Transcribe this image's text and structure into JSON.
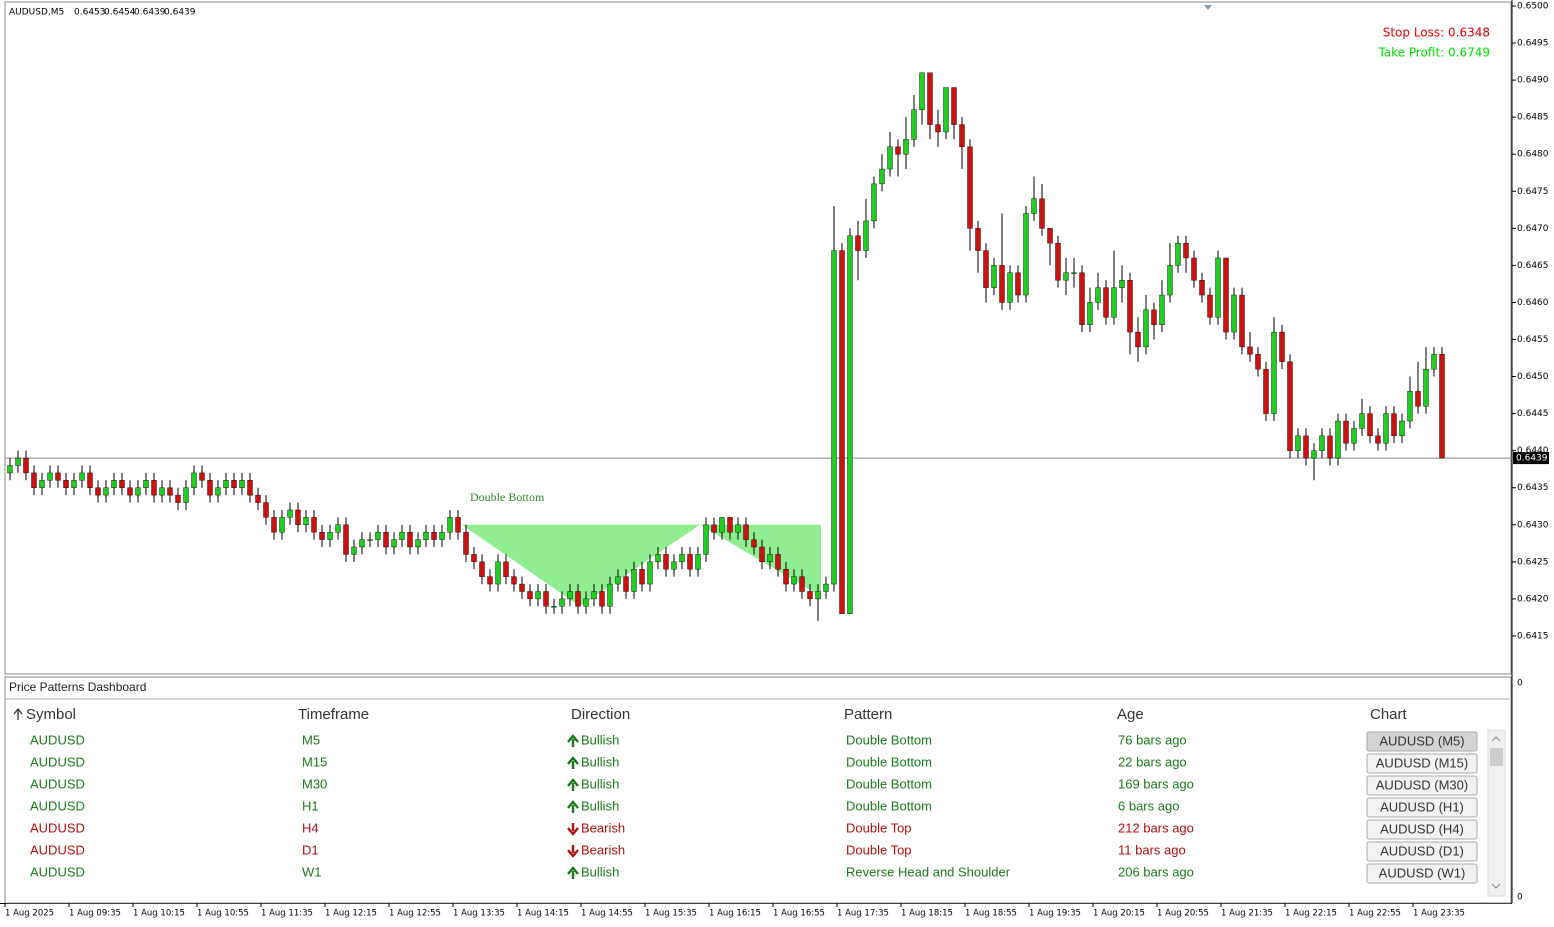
{
  "chart_data": {
    "type": "candlestick",
    "title": "AUDUSD,M5",
    "ohlc_display": [
      "0.6453",
      "0.6454",
      "0.6439",
      "0.6439"
    ],
    "up_color": "#22cc22",
    "down_color": "#cc1111",
    "wick_color": "#000000",
    "ylim": [
      0.641,
      0.65
    ],
    "yticks": [
      0.6415,
      {
        "value": 0.642,
        "label": "0.6420"
      },
      0.6425,
      {
        "value": 0.643,
        "label": "0.6430"
      },
      0.6435,
      {
        "value": 0.644,
        "label": "0.6440"
      },
      0.6445,
      {
        "value": 0.645,
        "label": "0.6450"
      },
      0.6455,
      {
        "value": 0.646,
        "label": "0.6460"
      },
      0.6465,
      {
        "value": 0.647,
        "label": "0.6470"
      },
      0.6475,
      {
        "value": 0.648,
        "label": "0.6480"
      },
      0.6485,
      {
        "value": 0.649,
        "label": "0.6490"
      },
      0.6495,
      {
        "value": 0.65,
        "label": "0.6500"
      }
    ],
    "sub_axis_labels": [
      0,
      0
    ],
    "current_price": 0.6439,
    "stop_loss_text": "Stop Loss: 0.6348",
    "take_profit_text": "Take Profit: 0.6749",
    "pattern": {
      "label": "Double Bottom",
      "neckline": 0.643,
      "low": 0.6419,
      "color": "#90ee90"
    },
    "time_labels": [
      "1 Aug 2025",
      "1 Aug 09:35",
      "1 Aug 10:15",
      "1 Aug 10:55",
      "1 Aug 11:35",
      "1 Aug 12:15",
      "1 Aug 12:55",
      "1 Aug 13:35",
      "1 Aug 14:15",
      "1 Aug 14:55",
      "1 Aug 15:35",
      "1 Aug 16:15",
      "1 Aug 16:55",
      "1 Aug 17:35",
      "1 Aug 18:15",
      "1 Aug 18:55",
      "1 Aug 19:35",
      "1 Aug 20:15",
      "1 Aug 20:55",
      "1 Aug 21:35",
      "1 Aug 22:15",
      "1 Aug 22:55",
      "1 Aug 23:35"
    ],
    "candles": [
      [
        0.6437,
        0.6439,
        0.6436,
        0.6438
      ],
      [
        0.6438,
        0.644,
        0.6437,
        0.6439
      ],
      [
        0.6439,
        0.644,
        0.6436,
        0.6437
      ],
      [
        0.6437,
        0.6438,
        0.6434,
        0.6435
      ],
      [
        0.6435,
        0.6437,
        0.6434,
        0.6436
      ],
      [
        0.6436,
        0.6438,
        0.6435,
        0.6437
      ],
      [
        0.6437,
        0.6438,
        0.6435,
        0.6436
      ],
      [
        0.6436,
        0.6437,
        0.6434,
        0.6435
      ],
      [
        0.6435,
        0.6437,
        0.6434,
        0.6436
      ],
      [
        0.6436,
        0.6438,
        0.6435,
        0.6437
      ],
      [
        0.6437,
        0.6438,
        0.6434,
        0.6435
      ],
      [
        0.6435,
        0.6436,
        0.6433,
        0.6434
      ],
      [
        0.6434,
        0.6436,
        0.6433,
        0.6435
      ],
      [
        0.6435,
        0.6437,
        0.6434,
        0.6436
      ],
      [
        0.6436,
        0.6437,
        0.6434,
        0.6435
      ],
      [
        0.6435,
        0.6436,
        0.6433,
        0.6434
      ],
      [
        0.6434,
        0.6436,
        0.6433,
        0.6435
      ],
      [
        0.6435,
        0.6437,
        0.6434,
        0.6436
      ],
      [
        0.6436,
        0.6437,
        0.6433,
        0.6434
      ],
      [
        0.6434,
        0.6436,
        0.6433,
        0.6435
      ],
      [
        0.6435,
        0.6436,
        0.6433,
        0.6434
      ],
      [
        0.6434,
        0.6435,
        0.6432,
        0.6433
      ],
      [
        0.6433,
        0.6436,
        0.6432,
        0.6435
      ],
      [
        0.6435,
        0.6438,
        0.6434,
        0.6437
      ],
      [
        0.6437,
        0.6438,
        0.6435,
        0.6436
      ],
      [
        0.6436,
        0.6437,
        0.6433,
        0.6434
      ],
      [
        0.6434,
        0.6436,
        0.6433,
        0.6435
      ],
      [
        0.6435,
        0.6437,
        0.6434,
        0.6436
      ],
      [
        0.6436,
        0.6437,
        0.6434,
        0.6435
      ],
      [
        0.6435,
        0.6437,
        0.6434,
        0.6436
      ],
      [
        0.6436,
        0.6437,
        0.6433,
        0.6434
      ],
      [
        0.6434,
        0.6435,
        0.6432,
        0.6433
      ],
      [
        0.6433,
        0.6434,
        0.643,
        0.6431
      ],
      [
        0.6431,
        0.6432,
        0.6428,
        0.6429
      ],
      [
        0.6429,
        0.6432,
        0.6428,
        0.6431
      ],
      [
        0.6431,
        0.6433,
        0.643,
        0.6432
      ],
      [
        0.6432,
        0.6433,
        0.6429,
        0.643
      ],
      [
        0.643,
        0.6432,
        0.6429,
        0.6431
      ],
      [
        0.6431,
        0.6432,
        0.6428,
        0.6429
      ],
      [
        0.6429,
        0.643,
        0.6427,
        0.6428
      ],
      [
        0.6428,
        0.643,
        0.6427,
        0.6429
      ],
      [
        0.6429,
        0.6431,
        0.6428,
        0.643
      ],
      [
        0.643,
        0.6431,
        0.6425,
        0.6426
      ],
      [
        0.6426,
        0.6428,
        0.6425,
        0.6427
      ],
      [
        0.6427,
        0.6429,
        0.6426,
        0.6428
      ],
      [
        0.6428,
        0.6429,
        0.6427,
        0.6428
      ],
      [
        0.6428,
        0.643,
        0.6427,
        0.6429
      ],
      [
        0.6429,
        0.643,
        0.6426,
        0.6427
      ],
      [
        0.6427,
        0.6429,
        0.6426,
        0.6428
      ],
      [
        0.6428,
        0.643,
        0.6427,
        0.6429
      ],
      [
        0.6429,
        0.643,
        0.6426,
        0.6427
      ],
      [
        0.6427,
        0.6429,
        0.6426,
        0.6428
      ],
      [
        0.6428,
        0.643,
        0.6427,
        0.6429
      ],
      [
        0.6429,
        0.643,
        0.6427,
        0.6428
      ],
      [
        0.6428,
        0.643,
        0.6427,
        0.6429
      ],
      [
        0.6429,
        0.6432,
        0.6428,
        0.6431
      ],
      [
        0.6431,
        0.6432,
        0.6428,
        0.6429
      ],
      [
        0.6429,
        0.643,
        0.6425,
        0.6426
      ],
      [
        0.6426,
        0.6427,
        0.6424,
        0.6425
      ],
      [
        0.6425,
        0.6426,
        0.6422,
        0.6423
      ],
      [
        0.6423,
        0.6424,
        0.6421,
        0.6422
      ],
      [
        0.6422,
        0.6426,
        0.6421,
        0.6425
      ],
      [
        0.6425,
        0.6426,
        0.6422,
        0.6423
      ],
      [
        0.6423,
        0.6424,
        0.6421,
        0.6422
      ],
      [
        0.6422,
        0.6423,
        0.642,
        0.6421
      ],
      [
        0.6421,
        0.6422,
        0.6419,
        0.642
      ],
      [
        0.642,
        0.6422,
        0.6419,
        0.6421
      ],
      [
        0.6421,
        0.6422,
        0.6418,
        0.6419
      ],
      [
        0.6419,
        0.642,
        0.6418,
        0.6419
      ],
      [
        0.6419,
        0.6421,
        0.6418,
        0.642
      ],
      [
        0.642,
        0.6422,
        0.6419,
        0.6421
      ],
      [
        0.6421,
        0.6422,
        0.6418,
        0.6419
      ],
      [
        0.6419,
        0.6421,
        0.6418,
        0.642
      ],
      [
        0.642,
        0.6422,
        0.6419,
        0.6421
      ],
      [
        0.6421,
        0.6422,
        0.6418,
        0.6419
      ],
      [
        0.6419,
        0.6423,
        0.6418,
        0.6422
      ],
      [
        0.6422,
        0.6424,
        0.6421,
        0.6423
      ],
      [
        0.6423,
        0.6424,
        0.642,
        0.6421
      ],
      [
        0.6421,
        0.6425,
        0.642,
        0.6424
      ],
      [
        0.6424,
        0.6425,
        0.6421,
        0.6422
      ],
      [
        0.6422,
        0.6426,
        0.6421,
        0.6425
      ],
      [
        0.6425,
        0.6427,
        0.6424,
        0.6426
      ],
      [
        0.6426,
        0.6427,
        0.6423,
        0.6424
      ],
      [
        0.6424,
        0.6426,
        0.6423,
        0.6425
      ],
      [
        0.6425,
        0.6427,
        0.6424,
        0.6426
      ],
      [
        0.6426,
        0.6427,
        0.6423,
        0.6424
      ],
      [
        0.6424,
        0.6427,
        0.6423,
        0.6426
      ],
      [
        0.6426,
        0.6431,
        0.6425,
        0.643
      ],
      [
        0.643,
        0.6431,
        0.6428,
        0.6429
      ],
      [
        0.6429,
        0.6431,
        0.6428,
        0.6431
      ],
      [
        0.6431,
        0.6431,
        0.6428,
        0.6429
      ],
      [
        0.6429,
        0.6431,
        0.6428,
        0.643
      ],
      [
        0.643,
        0.6431,
        0.6427,
        0.6428
      ],
      [
        0.6428,
        0.6429,
        0.6426,
        0.6427
      ],
      [
        0.6427,
        0.6428,
        0.6424,
        0.6425
      ],
      [
        0.6425,
        0.6427,
        0.6424,
        0.6426
      ],
      [
        0.6426,
        0.6427,
        0.6423,
        0.6424
      ],
      [
        0.6424,
        0.6425,
        0.6421,
        0.6422
      ],
      [
        0.6422,
        0.6424,
        0.6421,
        0.6423
      ],
      [
        0.6423,
        0.6424,
        0.642,
        0.6421
      ],
      [
        0.6421,
        0.6422,
        0.6419,
        0.642
      ],
      [
        0.642,
        0.6422,
        0.6417,
        0.6421
      ],
      [
        0.6421,
        0.6423,
        0.642,
        0.6422
      ],
      [
        0.6422,
        0.6473,
        0.6421,
        0.6467
      ],
      [
        0.6467,
        0.6468,
        0.6418,
        0.6418
      ],
      [
        0.6418,
        0.647,
        0.6418,
        0.6469
      ],
      [
        0.6469,
        0.6471,
        0.6463,
        0.6467
      ],
      [
        0.6467,
        0.6474,
        0.6466,
        0.6471
      ],
      [
        0.6471,
        0.6477,
        0.647,
        0.6476
      ],
      [
        0.6476,
        0.648,
        0.6475,
        0.6478
      ],
      [
        0.6478,
        0.6483,
        0.6477,
        0.6481
      ],
      [
        0.6481,
        0.6482,
        0.6477,
        0.648
      ],
      [
        0.648,
        0.6485,
        0.6478,
        0.6482
      ],
      [
        0.6482,
        0.6488,
        0.6481,
        0.6486
      ],
      [
        0.6486,
        0.6491,
        0.6484,
        0.6491
      ],
      [
        0.6491,
        0.6491,
        0.6482,
        0.6484
      ],
      [
        0.6484,
        0.6486,
        0.6481,
        0.6483
      ],
      [
        0.6483,
        0.6489,
        0.6482,
        0.6489
      ],
      [
        0.6489,
        0.6489,
        0.6482,
        0.6484
      ],
      [
        0.6484,
        0.6485,
        0.6478,
        0.6481
      ],
      [
        0.6481,
        0.6482,
        0.6467,
        0.647
      ],
      [
        0.647,
        0.6471,
        0.6464,
        0.6467
      ],
      [
        0.6467,
        0.6468,
        0.646,
        0.6462
      ],
      [
        0.6462,
        0.6466,
        0.6461,
        0.6465
      ],
      [
        0.6465,
        0.6472,
        0.6459,
        0.646
      ],
      [
        0.646,
        0.6465,
        0.6459,
        0.6464
      ],
      [
        0.6464,
        0.6465,
        0.646,
        0.6461
      ],
      [
        0.6461,
        0.6473,
        0.646,
        0.6472
      ],
      [
        0.6472,
        0.6477,
        0.6471,
        0.6474
      ],
      [
        0.6474,
        0.6476,
        0.6469,
        0.647
      ],
      [
        0.647,
        0.647,
        0.6465,
        0.6468
      ],
      [
        0.6468,
        0.6469,
        0.6462,
        0.6463
      ],
      [
        0.6463,
        0.6466,
        0.6461,
        0.6464
      ],
      [
        0.6464,
        0.6466,
        0.6462,
        0.6464
      ],
      [
        0.6464,
        0.6465,
        0.6456,
        0.6457
      ],
      [
        0.6457,
        0.6462,
        0.6456,
        0.646
      ],
      [
        0.646,
        0.6464,
        0.6459,
        0.6462
      ],
      [
        0.6462,
        0.6463,
        0.6457,
        0.6458
      ],
      [
        0.6458,
        0.6467,
        0.6457,
        0.6462
      ],
      [
        0.6462,
        0.6465,
        0.646,
        0.6463
      ],
      [
        0.6463,
        0.6464,
        0.6453,
        0.6456
      ],
      [
        0.6456,
        0.6458,
        0.6452,
        0.6454
      ],
      [
        0.6454,
        0.6461,
        0.6453,
        0.6459
      ],
      [
        0.6459,
        0.646,
        0.6455,
        0.6457
      ],
      [
        0.6457,
        0.6463,
        0.6456,
        0.6461
      ],
      [
        0.6461,
        0.6468,
        0.646,
        0.6465
      ],
      [
        0.6465,
        0.6469,
        0.6464,
        0.6468
      ],
      [
        0.6468,
        0.6469,
        0.6464,
        0.6466
      ],
      [
        0.6466,
        0.6467,
        0.6462,
        0.6463
      ],
      [
        0.6463,
        0.6464,
        0.646,
        0.6461
      ],
      [
        0.6461,
        0.6462,
        0.6457,
        0.6458
      ],
      [
        0.6458,
        0.6467,
        0.6457,
        0.6466
      ],
      [
        0.6466,
        0.6466,
        0.6455,
        0.6456
      ],
      [
        0.6456,
        0.6462,
        0.6455,
        0.6461
      ],
      [
        0.6461,
        0.6462,
        0.6453,
        0.6454
      ],
      [
        0.6454,
        0.6456,
        0.6452,
        0.6453
      ],
      [
        0.6453,
        0.6454,
        0.645,
        0.6451
      ],
      [
        0.6451,
        0.6452,
        0.6444,
        0.6445
      ],
      [
        0.6445,
        0.6458,
        0.6444,
        0.6456
      ],
      [
        0.6456,
        0.6457,
        0.6451,
        0.6452
      ],
      [
        0.6452,
        0.6453,
        0.6439,
        0.644
      ],
      [
        0.644,
        0.6443,
        0.6439,
        0.6442
      ],
      [
        0.6442,
        0.6443,
        0.6438,
        0.6439
      ],
      [
        0.6439,
        0.6441,
        0.6436,
        0.644
      ],
      [
        0.644,
        0.6443,
        0.6439,
        0.6442
      ],
      [
        0.6442,
        0.6443,
        0.6438,
        0.6439
      ],
      [
        0.6439,
        0.6445,
        0.6438,
        0.6444
      ],
      [
        0.6444,
        0.6445,
        0.644,
        0.6441
      ],
      [
        0.6441,
        0.6444,
        0.644,
        0.6443
      ],
      [
        0.6443,
        0.6447,
        0.6442,
        0.6445
      ],
      [
        0.6445,
        0.6446,
        0.6441,
        0.6442
      ],
      [
        0.6442,
        0.6443,
        0.644,
        0.6441
      ],
      [
        0.6441,
        0.6446,
        0.644,
        0.6445
      ],
      [
        0.6445,
        0.6446,
        0.6441,
        0.6442
      ],
      [
        0.6442,
        0.6445,
        0.6441,
        0.6444
      ],
      [
        0.6444,
        0.645,
        0.6443,
        0.6448
      ],
      [
        0.6448,
        0.6452,
        0.6445,
        0.6446
      ],
      [
        0.6446,
        0.6454,
        0.6445,
        0.6451
      ],
      [
        0.6451,
        0.6454,
        0.645,
        0.6453
      ],
      [
        0.6453,
        0.6454,
        0.6439,
        0.6439
      ]
    ]
  },
  "dashboard": {
    "title": "Price Patterns Dashboard",
    "columns": [
      "Symbol",
      "Timeframe",
      "Direction",
      "Pattern",
      "Age",
      "Chart"
    ],
    "rows": [
      {
        "symbol": "AUDUSD",
        "timeframe": "M5",
        "direction": "Bullish",
        "arrow": "up",
        "pattern": "Double Bottom",
        "age": "76 bars ago",
        "chart": "AUDUSD (M5)",
        "color": "#1a7a1a",
        "selected": true
      },
      {
        "symbol": "AUDUSD",
        "timeframe": "M15",
        "direction": "Bullish",
        "arrow": "up",
        "pattern": "Double Bottom",
        "age": "22 bars ago",
        "chart": "AUDUSD (M15)",
        "color": "#1a7a1a",
        "selected": false
      },
      {
        "symbol": "AUDUSD",
        "timeframe": "M30",
        "direction": "Bullish",
        "arrow": "up",
        "pattern": "Double Bottom",
        "age": "169 bars ago",
        "chart": "AUDUSD (M30)",
        "color": "#1a7a1a",
        "selected": false
      },
      {
        "symbol": "AUDUSD",
        "timeframe": "H1",
        "direction": "Bullish",
        "arrow": "up",
        "pattern": "Double Bottom",
        "age": "6 bars ago",
        "chart": "AUDUSD (H1)",
        "color": "#1a7a1a",
        "selected": false
      },
      {
        "symbol": "AUDUSD",
        "timeframe": "H4",
        "direction": "Bearish",
        "arrow": "down",
        "pattern": "Double Top",
        "age": "212 bars ago",
        "chart": "AUDUSD (H4)",
        "color": "#b01010",
        "selected": false
      },
      {
        "symbol": "AUDUSD",
        "timeframe": "D1",
        "direction": "Bearish",
        "arrow": "down",
        "pattern": "Double Top",
        "age": "11 bars ago",
        "chart": "AUDUSD (D1)",
        "color": "#b01010",
        "selected": false
      },
      {
        "symbol": "AUDUSD",
        "timeframe": "W1",
        "direction": "Bullish",
        "arrow": "up",
        "pattern": "Reverse Head and Shoulder",
        "age": "206 bars ago",
        "chart": "AUDUSD (W1)",
        "color": "#1a7a1a",
        "selected": false
      }
    ]
  }
}
